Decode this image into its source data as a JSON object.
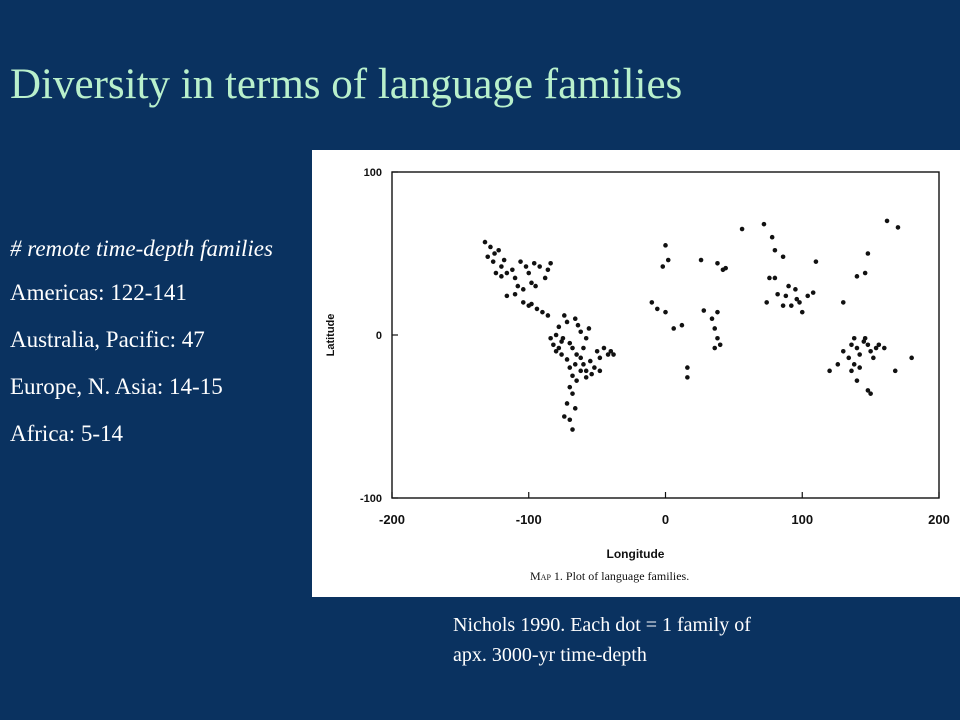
{
  "slide": {
    "title": "Diversity in terms of language families",
    "side_heading": "# remote time-depth families",
    "side_items": [
      "Americas: 122-141",
      "Australia, Pacific: 47",
      "Europe, N. Asia: 14-15",
      "Africa: 5-14"
    ],
    "caption_line1": "Nichols 1990. Each dot = 1 family of",
    "caption_line2": "apx. 3000-yr time-depth"
  },
  "colors": {
    "background": "#0a3260",
    "title": "#b9f0cc",
    "text": "#ffffff",
    "plot_ink": "#111111"
  },
  "chart_data": {
    "type": "scatter",
    "title": "Map 1. Plot of language families.",
    "caption_prefix": "Map 1.",
    "caption_text": "Plot of language families.",
    "xlabel": "Longitude",
    "ylabel": "Latitude",
    "xlim": [
      -200,
      200
    ],
    "ylim": [
      -100,
      100
    ],
    "xticks": [
      -200,
      -100,
      0,
      100,
      200
    ],
    "yticks": [
      100,
      0,
      -100
    ],
    "grid": false,
    "series": [
      {
        "points": [
          [
            -132,
            57
          ],
          [
            -128,
            54
          ],
          [
            -125,
            50
          ],
          [
            -130,
            48
          ],
          [
            -122,
            52
          ],
          [
            -126,
            45
          ],
          [
            -120,
            42
          ],
          [
            -118,
            46
          ],
          [
            -124,
            38
          ],
          [
            -120,
            36
          ],
          [
            -116,
            38
          ],
          [
            -112,
            40
          ],
          [
            -110,
            35
          ],
          [
            -106,
            45
          ],
          [
            -102,
            42
          ],
          [
            -108,
            30
          ],
          [
            -104,
            28
          ],
          [
            -98,
            32
          ],
          [
            -95,
            30
          ],
          [
            -100,
            38
          ],
          [
            -96,
            44
          ],
          [
            -92,
            42
          ],
          [
            -86,
            40
          ],
          [
            -88,
            35
          ],
          [
            -84,
            44
          ],
          [
            -116,
            24
          ],
          [
            -110,
            25
          ],
          [
            -104,
            20
          ],
          [
            -100,
            18
          ],
          [
            -98,
            19
          ],
          [
            -94,
            16
          ],
          [
            -90,
            14
          ],
          [
            -86,
            12
          ],
          [
            -80,
            0
          ],
          [
            -78,
            5
          ],
          [
            -75,
            -2
          ],
          [
            -72,
            8
          ],
          [
            -70,
            -5
          ],
          [
            -68,
            -8
          ],
          [
            -65,
            -12
          ],
          [
            -62,
            -14
          ],
          [
            -60,
            -18
          ],
          [
            -58,
            -22
          ],
          [
            -55,
            -16
          ],
          [
            -52,
            -20
          ],
          [
            -50,
            -10
          ],
          [
            -48,
            -14
          ],
          [
            -45,
            -8
          ],
          [
            -42,
            -12
          ],
          [
            -40,
            -10
          ],
          [
            -38,
            -12
          ],
          [
            -72,
            -15
          ],
          [
            -70,
            -20
          ],
          [
            -68,
            -25
          ],
          [
            -65,
            -28
          ],
          [
            -70,
            -32
          ],
          [
            -68,
            -36
          ],
          [
            -72,
            -42
          ],
          [
            -66,
            -45
          ],
          [
            -70,
            -52
          ],
          [
            -68,
            -58
          ],
          [
            -74,
            -50
          ],
          [
            -60,
            -8
          ],
          [
            -58,
            -2
          ],
          [
            -56,
            4
          ],
          [
            -62,
            2
          ],
          [
            -66,
            10
          ],
          [
            -64,
            6
          ],
          [
            -78,
            -8
          ],
          [
            -76,
            -12
          ],
          [
            -82,
            -6
          ],
          [
            -80,
            -10
          ],
          [
            -84,
            -2
          ],
          [
            -66,
            -18
          ],
          [
            -62,
            -22
          ],
          [
            -58,
            -26
          ],
          [
            -54,
            -24
          ],
          [
            -48,
            -22
          ],
          [
            -76,
            -4
          ],
          [
            -74,
            12
          ],
          [
            0,
            55
          ],
          [
            2,
            46
          ],
          [
            -2,
            42
          ],
          [
            -10,
            20
          ],
          [
            -6,
            16
          ],
          [
            0,
            14
          ],
          [
            6,
            4
          ],
          [
            12,
            6
          ],
          [
            16,
            -20
          ],
          [
            16,
            -26
          ],
          [
            26,
            46
          ],
          [
            28,
            15
          ],
          [
            34,
            10
          ],
          [
            36,
            4
          ],
          [
            38,
            -2
          ],
          [
            40,
            -6
          ],
          [
            36,
            -8
          ],
          [
            38,
            14
          ],
          [
            38,
            44
          ],
          [
            42,
            40
          ],
          [
            44,
            41
          ],
          [
            56,
            65
          ],
          [
            72,
            68
          ],
          [
            78,
            60
          ],
          [
            80,
            52
          ],
          [
            86,
            48
          ],
          [
            76,
            35
          ],
          [
            80,
            35
          ],
          [
            90,
            30
          ],
          [
            95,
            28
          ],
          [
            98,
            20
          ],
          [
            100,
            14
          ],
          [
            86,
            18
          ],
          [
            82,
            25
          ],
          [
            74,
            20
          ],
          [
            88,
            24
          ],
          [
            104,
            24
          ],
          [
            108,
            26
          ],
          [
            96,
            22
          ],
          [
            92,
            18
          ],
          [
            110,
            45
          ],
          [
            120,
            -22
          ],
          [
            126,
            -18
          ],
          [
            130,
            -10
          ],
          [
            134,
            -14
          ],
          [
            136,
            -6
          ],
          [
            138,
            -2
          ],
          [
            140,
            -8
          ],
          [
            142,
            -12
          ],
          [
            145,
            -4
          ],
          [
            148,
            -6
          ],
          [
            150,
            -10
          ],
          [
            152,
            -14
          ],
          [
            154,
            -8
          ],
          [
            138,
            -18
          ],
          [
            136,
            -22
          ],
          [
            140,
            -28
          ],
          [
            148,
            -34
          ],
          [
            150,
            -36
          ],
          [
            160,
            -8
          ],
          [
            168,
            -22
          ],
          [
            180,
            -14
          ],
          [
            146,
            -2
          ],
          [
            156,
            -6
          ],
          [
            142,
            -20
          ],
          [
            140,
            36
          ],
          [
            146,
            38
          ],
          [
            148,
            50
          ],
          [
            162,
            70
          ],
          [
            170,
            66
          ],
          [
            130,
            20
          ]
        ]
      }
    ]
  }
}
